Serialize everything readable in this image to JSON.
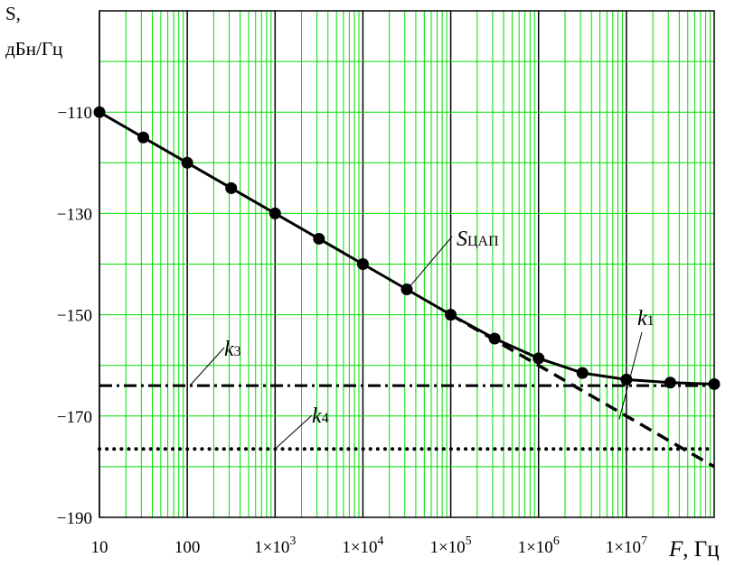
{
  "chart_data": {
    "type": "line",
    "ylabel_line1": "S,",
    "ylabel_line2": "дБн/Гц",
    "xlabel_var": "F",
    "xlabel_unit": ", Гц",
    "xscale": "log",
    "xlim": [
      10,
      100000000
    ],
    "ylim": [
      -190,
      -90
    ],
    "grid": true,
    "grid_color": "#00dd00",
    "x_ticks": [
      {
        "value": 10,
        "mant": "10",
        "exp": ""
      },
      {
        "value": 100,
        "mant": "100",
        "exp": ""
      },
      {
        "value": 1000,
        "mant": "1×10",
        "exp": "3"
      },
      {
        "value": 10000,
        "mant": "1×10",
        "exp": "4"
      },
      {
        "value": 100000,
        "mant": "1×10",
        "exp": "5"
      },
      {
        "value": 1000000,
        "mant": "1×10",
        "exp": "6"
      },
      {
        "value": 10000000,
        "mant": "1×10",
        "exp": "7"
      }
    ],
    "y_ticks": [
      {
        "value": -110,
        "label": "−110"
      },
      {
        "value": -130,
        "label": "−130"
      },
      {
        "value": -150,
        "label": "−150"
      },
      {
        "value": -170,
        "label": "−170"
      },
      {
        "value": -190,
        "label": "−190"
      }
    ],
    "series": [
      {
        "name": "S",
        "subscript": "ЦАП",
        "style": "solid-markers",
        "x": [
          10,
          31.6,
          100,
          316,
          1000,
          3160,
          10000,
          31600,
          100000,
          316000,
          1000000,
          3160000,
          10000000,
          31600000,
          100000000
        ],
        "y": [
          -110,
          -115,
          -120,
          -125,
          -130,
          -135,
          -140,
          -145,
          -150,
          -154.7,
          -158.6,
          -161.5,
          -162.8,
          -163.4,
          -163.7
        ]
      },
      {
        "name": "k",
        "subscript": "1",
        "style": "dashed",
        "x": [
          100000,
          316000,
          1000000,
          3160000,
          10000000,
          31600000,
          100000000
        ],
        "y": [
          -150,
          -155,
          -160,
          -165,
          -170,
          -175,
          -180
        ]
      },
      {
        "name": "k",
        "subscript": "3",
        "style": "dashdot",
        "x": [
          10,
          100000000
        ],
        "y": [
          -164,
          -164
        ]
      },
      {
        "name": "k",
        "subscript": "4",
        "style": "dotted",
        "x": [
          10,
          100000000
        ],
        "y": [
          -176.5,
          -176.5
        ]
      }
    ]
  }
}
